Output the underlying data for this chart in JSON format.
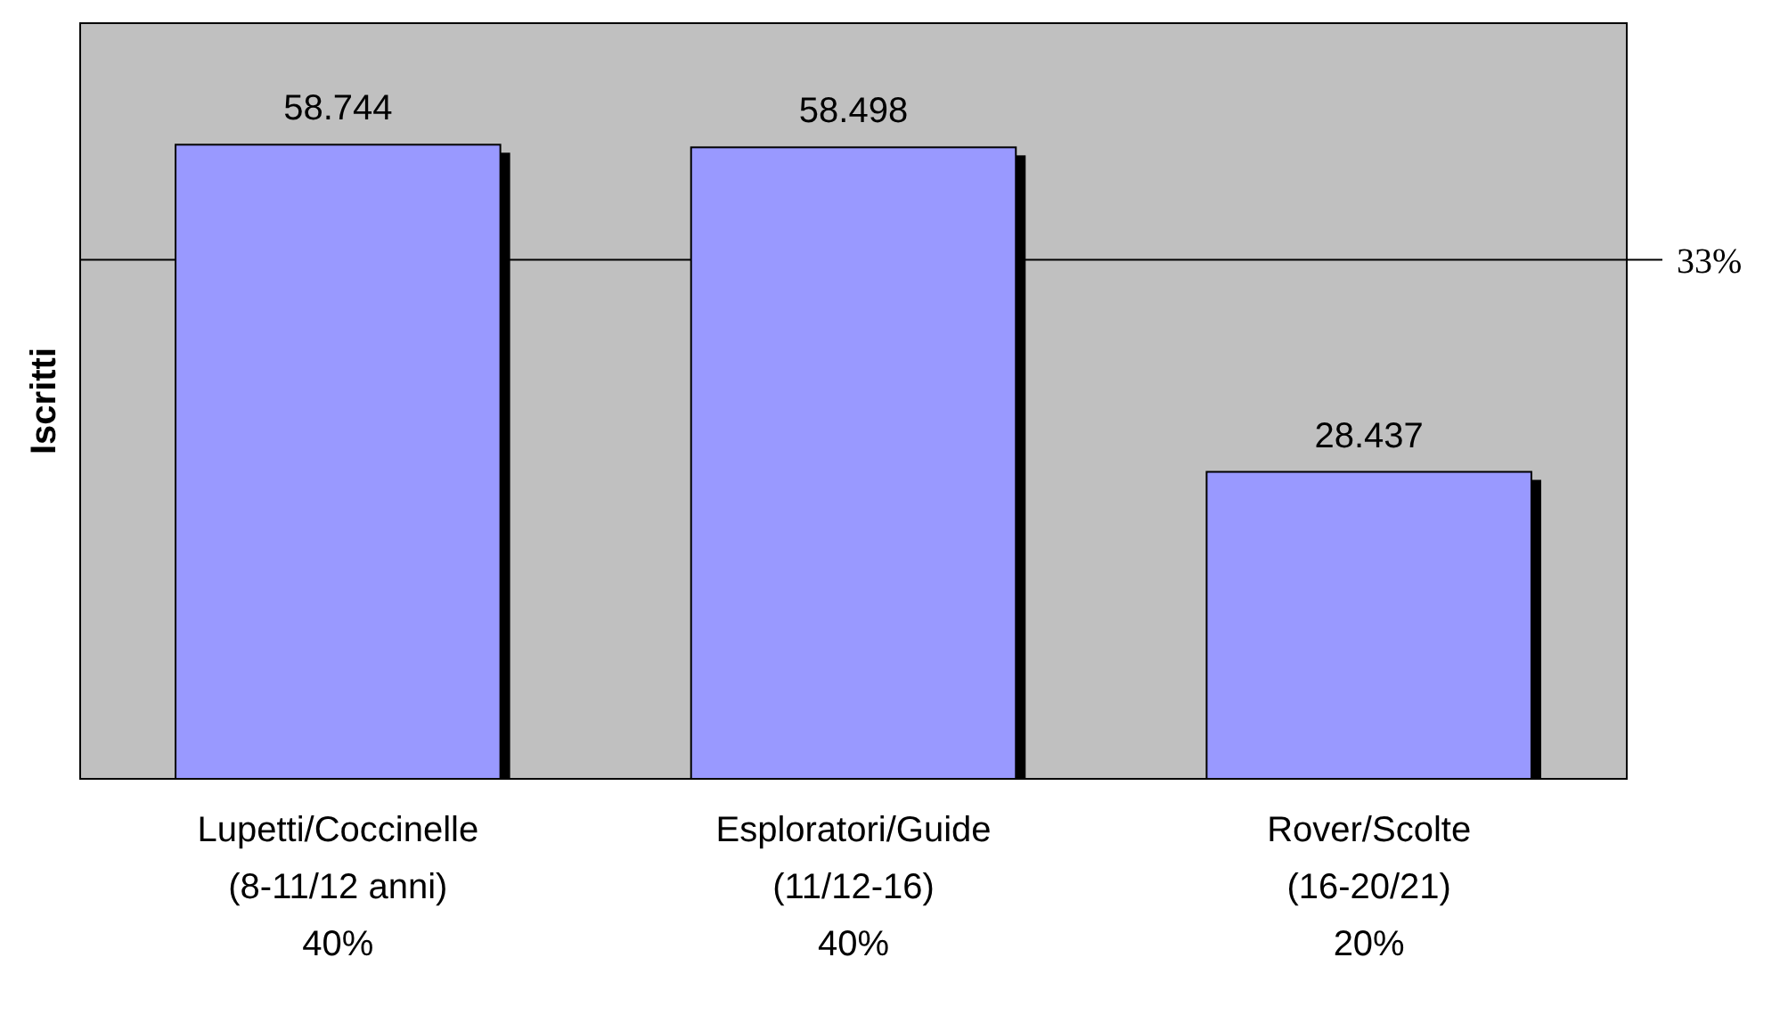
{
  "chart_data": {
    "type": "bar",
    "ylabel": "Iscritti",
    "categories": [
      "Lupetti/Coccinelle\n(8-11/12 anni)\n40%",
      "Esploratori/Guide\n(11/12-16)\n40%",
      "Rover/Scolte\n(16-20/21)\n20%"
    ],
    "values": [
      58744,
      58498,
      28437
    ],
    "value_labels": [
      "58.744",
      "58.498",
      "28.437"
    ],
    "color": "#9999ff",
    "ylim": [
      0,
      70000
    ],
    "tick_labels": "x",
    "ref_lines": [
      {
        "axis": "y",
        "value": 48074,
        "color": "#000000"
      }
    ],
    "annotations": [
      "33%"
    ]
  }
}
